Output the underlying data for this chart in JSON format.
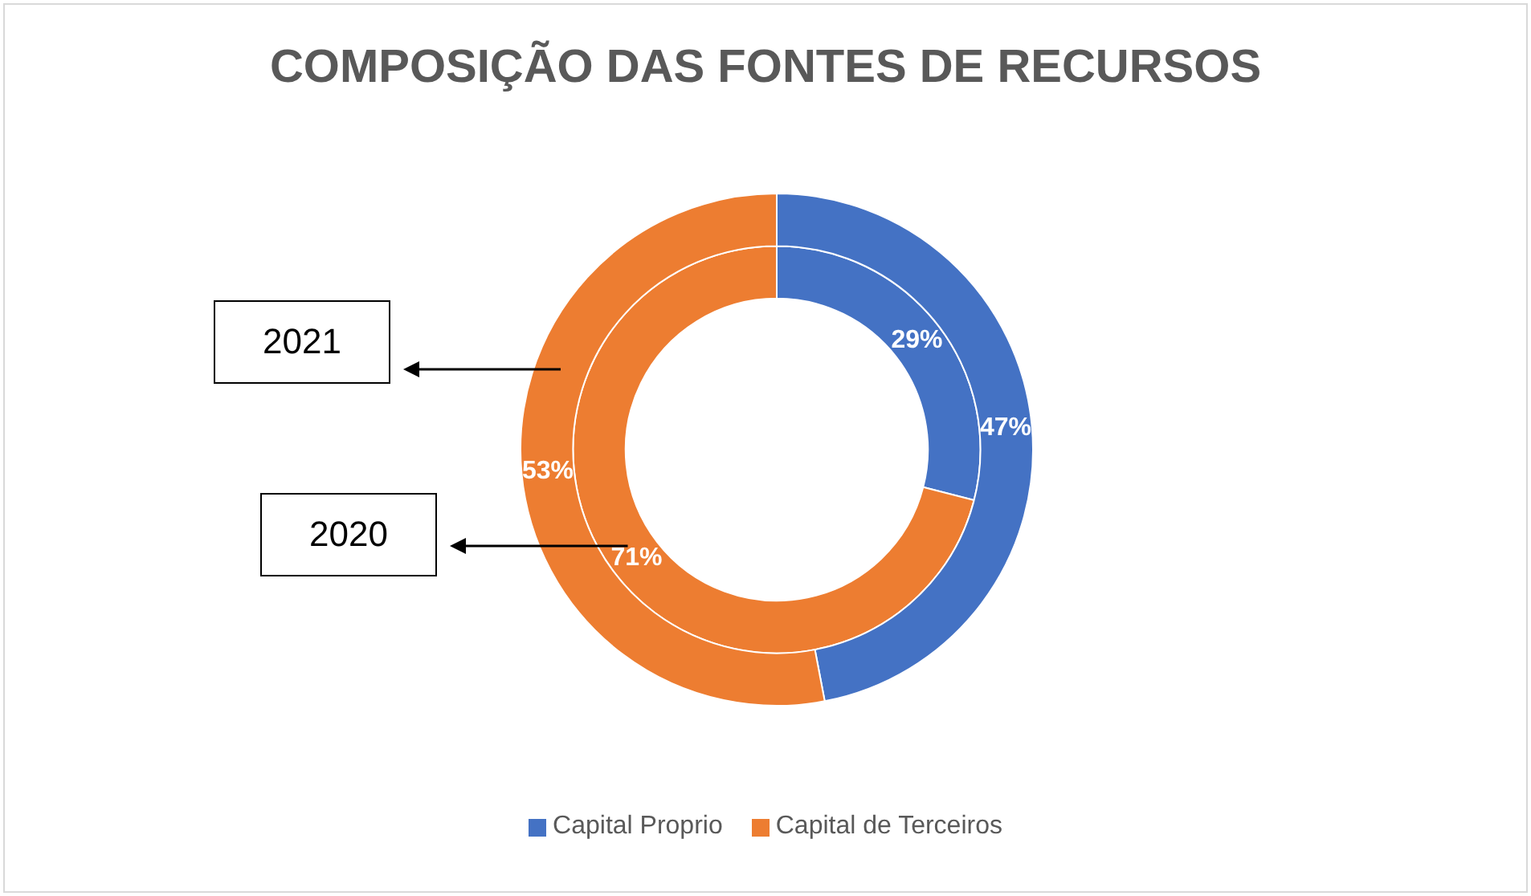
{
  "chart_data": {
    "type": "donut",
    "title": "COMPOSIÇÃO DAS FONTES DE RECURSOS",
    "categories": [
      "Capital Proprio",
      "Capital de Terceiros"
    ],
    "colors": [
      "#4472c4",
      "#ed7d31"
    ],
    "series": [
      {
        "values": [
          47,
          53
        ],
        "value_labels": [
          "47%",
          "53%"
        ]
      },
      {
        "values": [
          29,
          71
        ],
        "value_labels": [
          "29%",
          "71%"
        ]
      }
    ],
    "annotations": [
      "2021",
      "2020"
    ],
    "legend": "bottom"
  }
}
